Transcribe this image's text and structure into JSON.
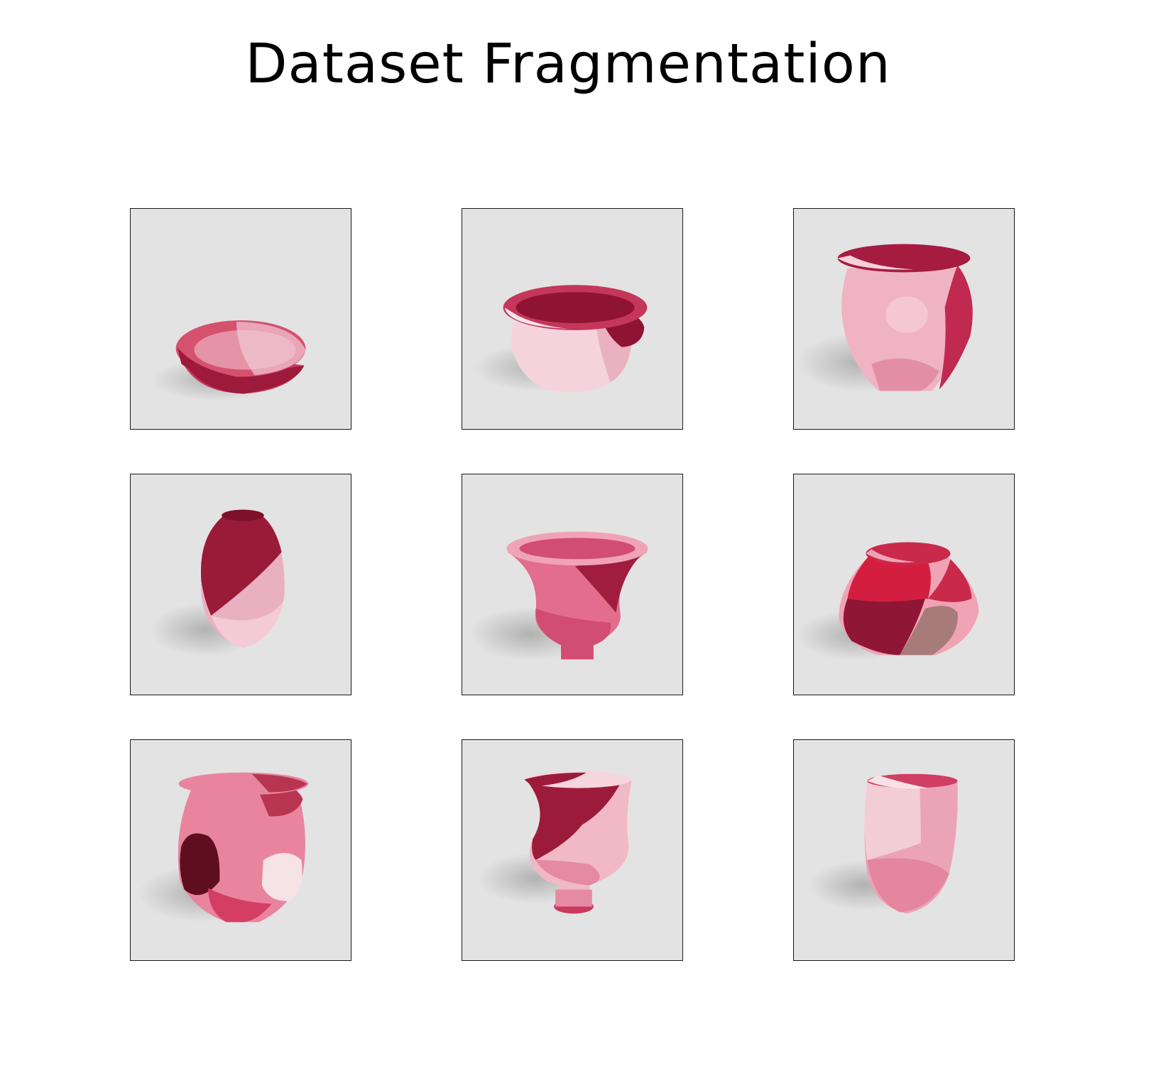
{
  "figure": {
    "title": "Dataset Fragmentation"
  },
  "tiles": [
    {
      "object": "bowl",
      "palette": [
        "#d5526f",
        "#9e1a3a",
        "#e9a6b8",
        "#f2c9d3",
        "#c93a5f"
      ]
    },
    {
      "object": "wide-rim-pot",
      "palette": [
        "#f4d3dc",
        "#c4365a",
        "#8f1433",
        "#eab1c0",
        "#f8e3e8"
      ]
    },
    {
      "object": "round-jar",
      "palette": [
        "#efb3c3",
        "#c02a50",
        "#e48ea6",
        "#f6d0da",
        "#a61c40"
      ]
    },
    {
      "object": "tall-vase",
      "palette": [
        "#9a1b38",
        "#e9b0c1",
        "#7d1129",
        "#f3cad5",
        "#d7889e"
      ]
    },
    {
      "object": "flared-vase",
      "palette": [
        "#e36d8e",
        "#a01d3d",
        "#f0a3b7",
        "#d24d72",
        "#f6c6d2"
      ]
    },
    {
      "object": "squat-jar",
      "palette": [
        "#8f1635",
        "#d41e40",
        "#f0a3b4",
        "#a77b79",
        "#c92a4b"
      ]
    },
    {
      "object": "big-jar",
      "palette": [
        "#e9849f",
        "#5f0e1f",
        "#f6e3e6",
        "#d43e62",
        "#b83552"
      ]
    },
    {
      "object": "footed-vase",
      "palette": [
        "#9c1b3b",
        "#f1b8c6",
        "#e58aa3",
        "#f6d5dc",
        "#c93a5d"
      ]
    },
    {
      "object": "cup-vase",
      "palette": [
        "#f3cdd6",
        "#e4869f",
        "#d03e63",
        "#f8e2e7",
        "#eba4b7"
      ]
    }
  ]
}
